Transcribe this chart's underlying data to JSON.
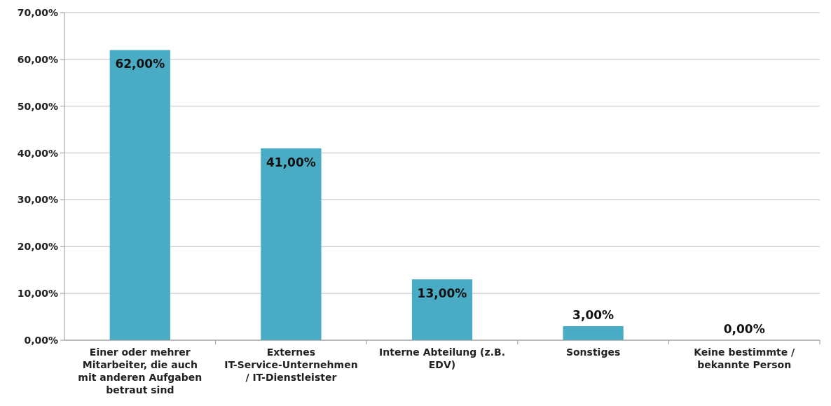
{
  "chart_data": {
    "type": "bar",
    "categories": [
      "Einer oder mehrer Mitarbeiter, die auch mit anderen Aufgaben betraut sind",
      "Externes IT-Service-Unternehmen / IT-Dienstleister",
      "Interne Abteilung (z.B. EDV)",
      "Sonstiges",
      "Keine bestimmte / bekannte Person"
    ],
    "values": [
      62,
      41,
      13,
      3,
      0
    ],
    "color": "#4aabc5",
    "value_labels": [
      "62,00%",
      "41,00%",
      "13,00%",
      "3,00%",
      "0,00%"
    ],
    "ylim": [
      0,
      70
    ],
    "yticks": [
      {
        "value": 0,
        "label": "0,00%"
      },
      {
        "value": 10,
        "label": "10,00%"
      },
      {
        "value": 20,
        "label": "20,00%"
      },
      {
        "value": 30,
        "label": "30,00%"
      },
      {
        "value": 40,
        "label": "40,00%"
      },
      {
        "value": 50,
        "label": "50,00%"
      },
      {
        "value": 60,
        "label": "60,00%"
      },
      {
        "value": 70,
        "label": "70,00%"
      }
    ],
    "grid": "y"
  }
}
